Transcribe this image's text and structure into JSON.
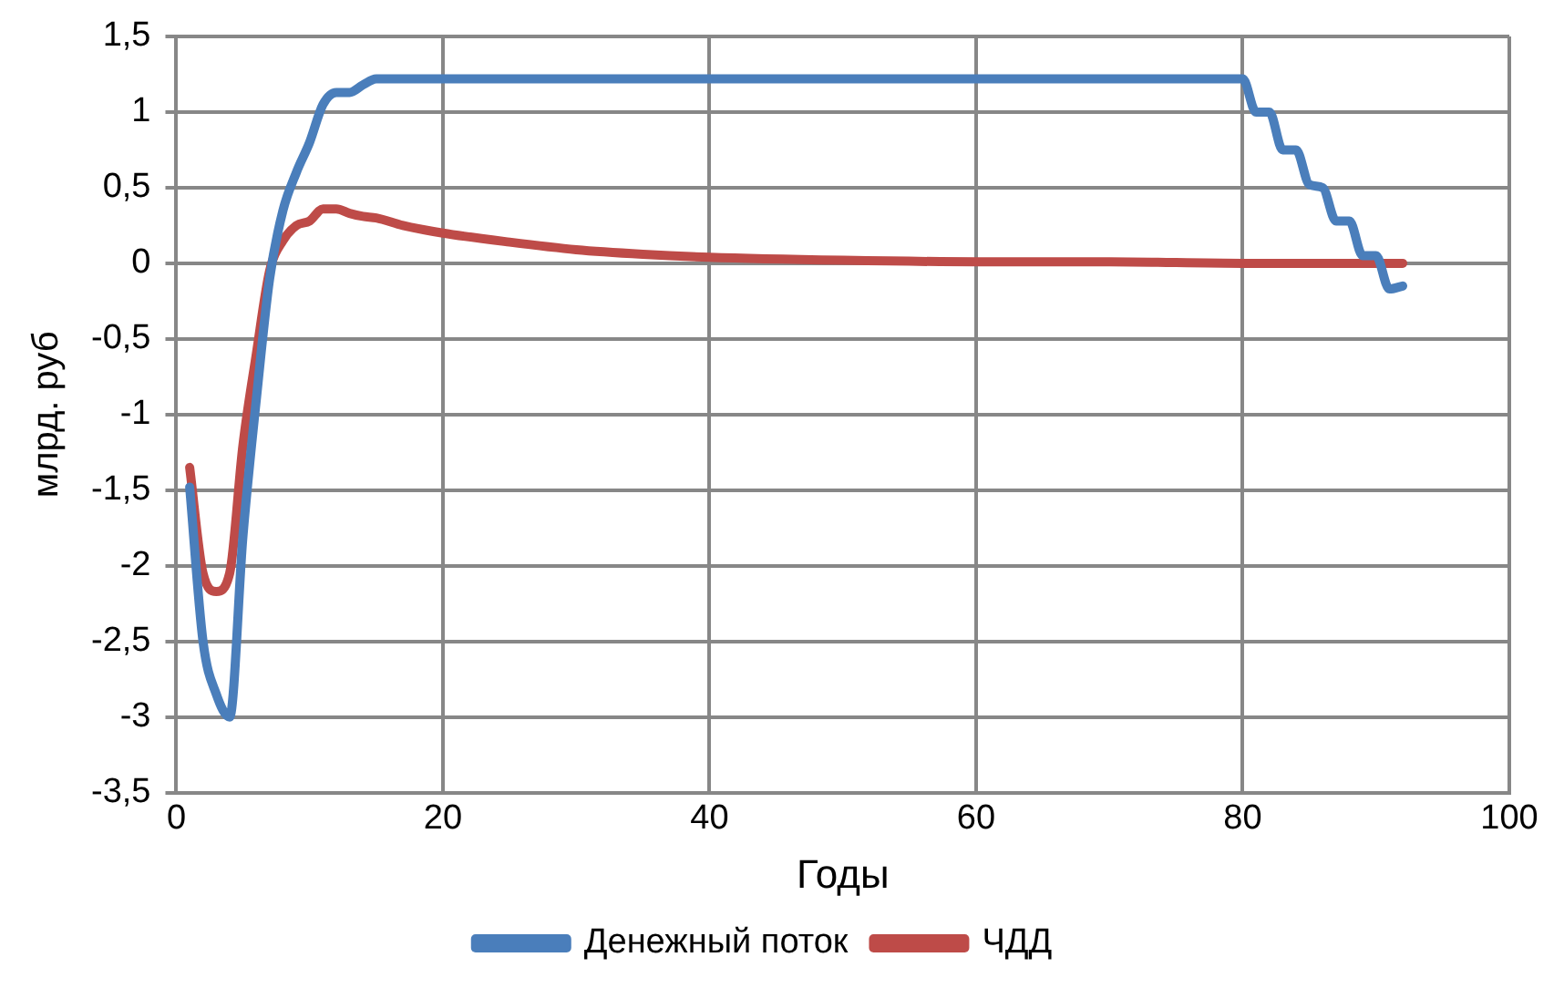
{
  "chart_data": {
    "type": "line",
    "xlabel": "Годы",
    "ylabel": "млрд. руб",
    "xlim": [
      0,
      100
    ],
    "xticks": [
      0,
      20,
      40,
      60,
      80,
      100
    ],
    "ylim": [
      -3.5,
      1.5
    ],
    "yticks": [
      {
        "value": -3.5,
        "label": "-3,5"
      },
      {
        "value": -3,
        "label": "-3"
      },
      {
        "value": -2.5,
        "label": "-2,5"
      },
      {
        "value": -2,
        "label": "-2"
      },
      {
        "value": -1.5,
        "label": "-1,5"
      },
      {
        "value": -1,
        "label": "-1"
      },
      {
        "value": -0.5,
        "label": "-0,5"
      },
      {
        "value": 0,
        "label": "0"
      },
      {
        "value": 0.5,
        "label": "0,5"
      },
      {
        "value": 1,
        "label": "1"
      },
      {
        "value": 1.5,
        "label": "1,5"
      }
    ],
    "grid": true,
    "legend": "bottom",
    "marker": "none",
    "line_style": "solid",
    "series": [
      {
        "name": "Денежный поток",
        "color": "#4a7ebb",
        "x": [
          1,
          2,
          3,
          4,
          5,
          6,
          7,
          8,
          9,
          10,
          11,
          12,
          13,
          14,
          15,
          80,
          81,
          82,
          83,
          84,
          85,
          86,
          87,
          88,
          89,
          90,
          91,
          92
        ],
        "values": [
          -1.48,
          -2.5,
          -2.85,
          -3.0,
          -1.8,
          -0.9,
          -0.1,
          0.35,
          0.6,
          0.8,
          1.05,
          1.13,
          1.13,
          1.18,
          1.22,
          1.22,
          1.0,
          1.0,
          0.75,
          0.75,
          0.52,
          0.5,
          0.28,
          0.28,
          0.05,
          0.05,
          -0.17,
          -0.15
        ]
      },
      {
        "name": "ЧДД",
        "color": "#be4b48",
        "x": [
          1,
          2,
          3,
          4,
          5,
          6,
          7,
          8,
          9,
          10,
          11,
          12,
          13,
          14,
          15,
          17,
          20,
          25,
          30,
          35,
          40,
          50,
          60,
          70,
          80,
          92
        ],
        "values": [
          -1.35,
          -2.05,
          -2.17,
          -2.05,
          -1.2,
          -0.6,
          -0.05,
          0.15,
          0.25,
          0.28,
          0.36,
          0.36,
          0.33,
          0.31,
          0.3,
          0.25,
          0.2,
          0.14,
          0.09,
          0.06,
          0.04,
          0.02,
          0.01,
          0.01,
          0,
          0
        ]
      }
    ]
  }
}
